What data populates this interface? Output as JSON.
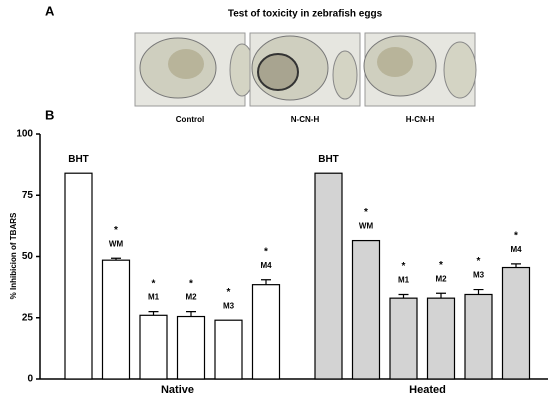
{
  "panel_a": {
    "label": "A",
    "title": "Test of toxicity in zebrafish eggs",
    "images": [
      {
        "caption": "Control"
      },
      {
        "caption": "N-CN-H"
      },
      {
        "caption": "H-CN-H"
      }
    ]
  },
  "chart_data": {
    "type": "bar",
    "panel_label": "B",
    "ylabel": "% Inhibicion of TBARS",
    "categories": [
      "BHT",
      "WM",
      "M1",
      "M2",
      "M3",
      "M4"
    ],
    "series": [
      {
        "name": "Native",
        "color": "#ffffff",
        "values": [
          84,
          48.5,
          26,
          25.5,
          24,
          38.5
        ],
        "errors": [
          0,
          0.8,
          1.5,
          2,
          0,
          2
        ],
        "markers": [
          null,
          "*",
          "*",
          "*",
          "*",
          "*"
        ]
      },
      {
        "name": "Heated",
        "color": "#d3d3d3",
        "values": [
          84,
          56.5,
          33,
          33,
          34.5,
          45.5
        ],
        "errors": [
          0,
          0,
          1.5,
          2,
          2,
          1.5
        ],
        "markers": [
          null,
          "*",
          "*",
          "*",
          "*",
          "*"
        ]
      }
    ],
    "ylim": [
      0,
      100
    ],
    "yticks": [
      0,
      25,
      50,
      75,
      100
    ]
  }
}
